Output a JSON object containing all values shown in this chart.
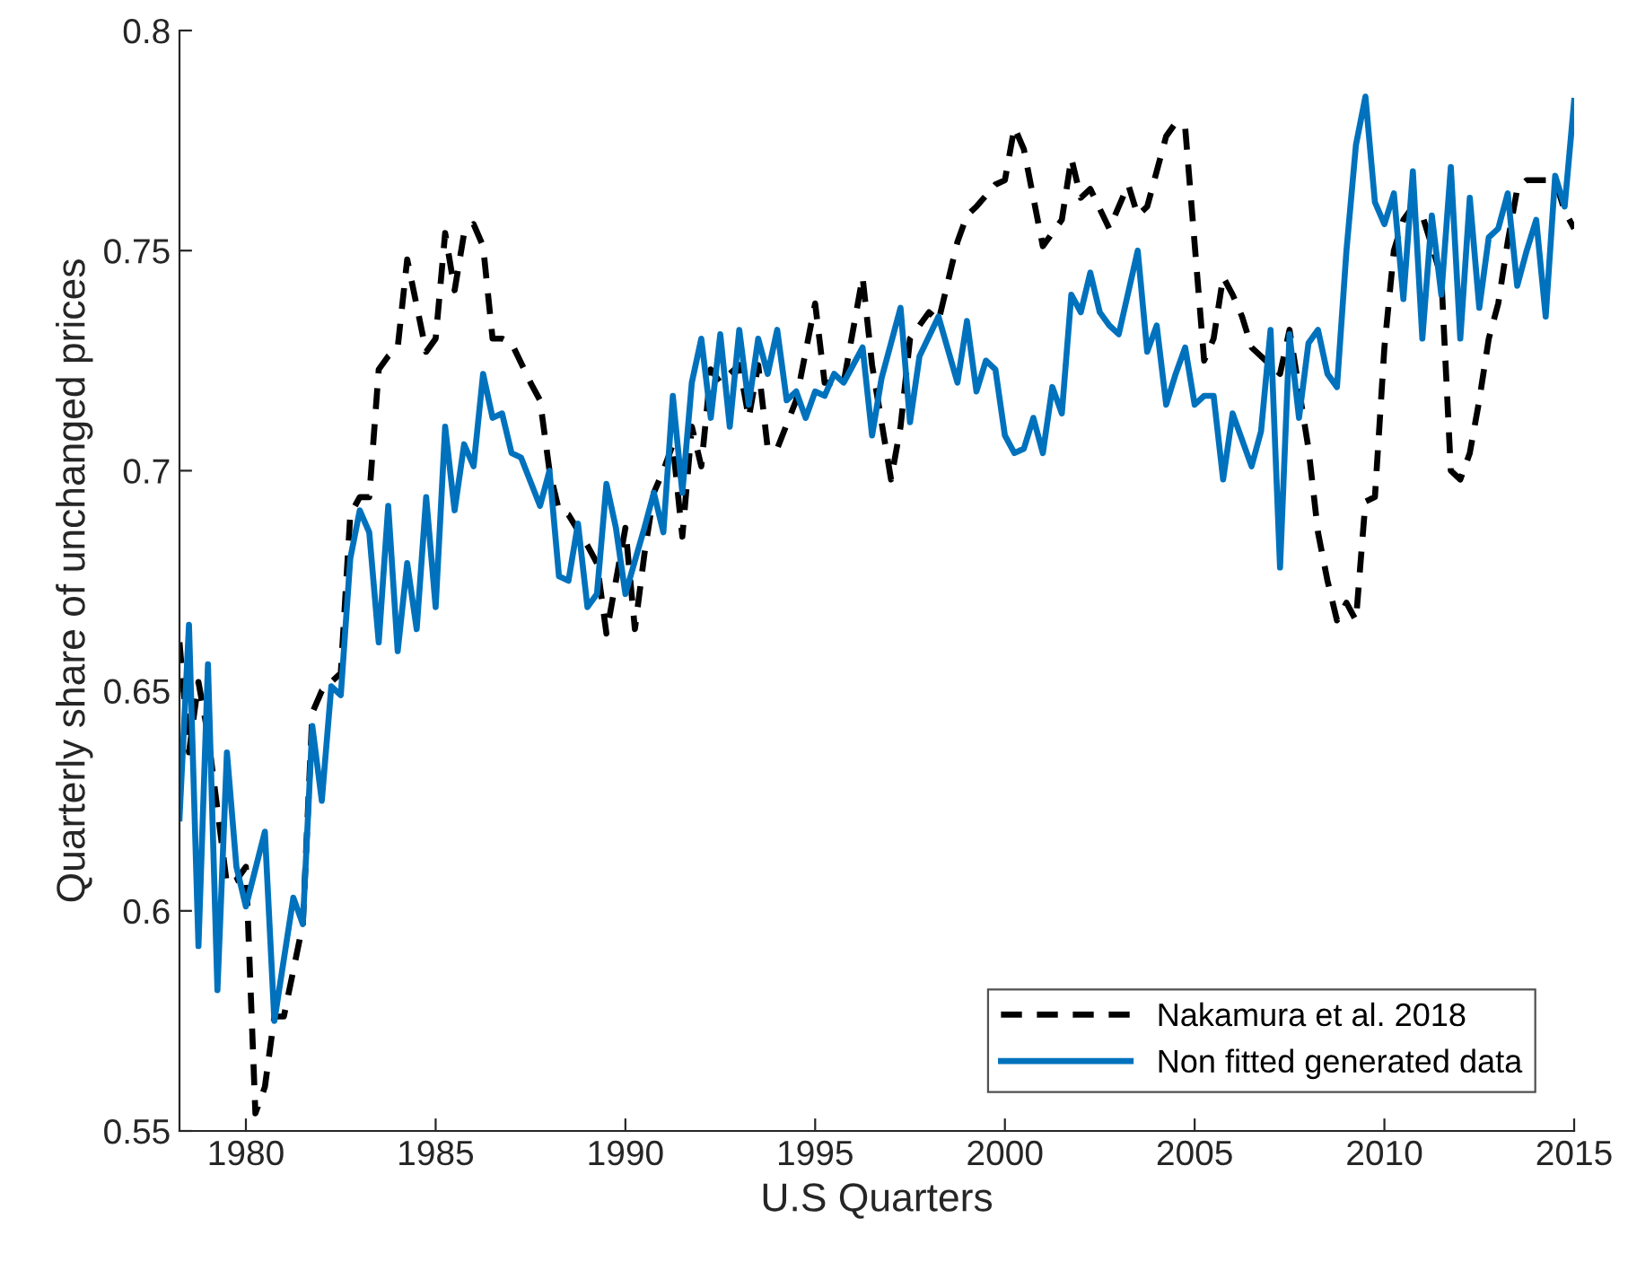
{
  "chart_data": {
    "type": "line",
    "xlabel": "U.S Quarters",
    "ylabel": "Quarterly share of unchanged prices",
    "xlim": [
      1978.25,
      2015
    ],
    "xticks": [
      1980,
      1985,
      1990,
      1995,
      2000,
      2005,
      2010,
      2015
    ],
    "ylim": [
      0.55,
      0.8
    ],
    "yticks": [
      0.55,
      0.6,
      0.65,
      0.7,
      0.75,
      0.8
    ],
    "grid": false,
    "legend": "bottom right",
    "series": [
      {
        "name": "Nakamura et al. 2018",
        "color": "#000000",
        "line_style": "dashed",
        "x": [
          1978.25,
          1978.5,
          1978.75,
          1979,
          1979.5,
          1979.75,
          1980,
          1980.25,
          1980.5,
          1980.75,
          1981,
          1981.5,
          1981.75,
          1982,
          1982.5,
          1982.75,
          1983,
          1983.25,
          1983.5,
          1983.75,
          1984,
          1984.25,
          1984.75,
          1985,
          1985.25,
          1985.5,
          1985.75,
          1986,
          1986.25,
          1986.5,
          1986.75,
          1987,
          1987.5,
          1987.75,
          1988,
          1988.25,
          1988.5,
          1989,
          1989.25,
          1989.5,
          1990,
          1990.25,
          1990.5,
          1990.75,
          1991,
          1991.25,
          1991.5,
          1991.75,
          1992,
          1992.25,
          1992.5,
          1993,
          1993.25,
          1993.5,
          1993.75,
          1994,
          1994.5,
          1995,
          1995.25,
          1995.75,
          1996.25,
          1996.5,
          1997,
          1997.25,
          1997.5,
          1998,
          1998.25,
          1998.75,
          1999,
          1999.25,
          1999.75,
          2000,
          2000.25,
          2000.5,
          2001,
          2001.5,
          2001.75,
          2002,
          2002.25,
          2002.75,
          2003.25,
          2003.5,
          2003.75,
          2004.25,
          2004.5,
          2004.75,
          2005.25,
          2005.5,
          2005.75,
          2006,
          2006.25,
          2006.5,
          2007,
          2007.25,
          2007.5,
          2008,
          2008.25,
          2008.5,
          2008.75,
          2009,
          2009.25,
          2009.5,
          2009.75,
          2010,
          2010.25,
          2010.5,
          2010.75,
          2011,
          2011.5,
          2011.75,
          2012,
          2012.25,
          2012.5,
          2012.75,
          2013,
          2013.25,
          2013.5,
          2013.75,
          2014,
          2014.5,
          2014.75,
          2015
        ],
        "values": [
          0.661,
          0.636,
          0.652,
          0.64,
          0.606,
          0.607,
          0.61,
          0.554,
          0.56,
          0.576,
          0.576,
          0.597,
          0.645,
          0.65,
          0.654,
          0.69,
          0.694,
          0.694,
          0.723,
          0.726,
          0.728,
          0.748,
          0.727,
          0.73,
          0.754,
          0.741,
          0.754,
          0.756,
          0.751,
          0.73,
          0.73,
          0.729,
          0.72,
          0.716,
          0.7,
          0.691,
          0.69,
          0.683,
          0.679,
          0.663,
          0.687,
          0.664,
          0.681,
          0.695,
          0.7,
          0.706,
          0.685,
          0.71,
          0.701,
          0.723,
          0.72,
          0.724,
          0.712,
          0.724,
          0.705,
          0.705,
          0.716,
          0.738,
          0.72,
          0.72,
          0.744,
          0.724,
          0.698,
          0.71,
          0.73,
          0.736,
          0.734,
          0.752,
          0.758,
          0.76,
          0.765,
          0.766,
          0.778,
          0.773,
          0.751,
          0.757,
          0.771,
          0.762,
          0.764,
          0.755,
          0.765,
          0.758,
          0.76,
          0.776,
          0.779,
          0.778,
          0.725,
          0.73,
          0.744,
          0.74,
          0.735,
          0.728,
          0.724,
          0.722,
          0.732,
          0.705,
          0.686,
          0.675,
          0.666,
          0.67,
          0.666,
          0.693,
          0.694,
          0.728,
          0.75,
          0.757,
          0.76,
          0.758,
          0.744,
          0.7,
          0.698,
          0.704,
          0.716,
          0.73,
          0.738,
          0.752,
          0.764,
          0.766,
          0.766,
          0.766,
          0.759,
          0.755
        ]
      },
      {
        "name": "Non fitted generated data",
        "color": "#0072bd",
        "line_style": "solid",
        "x": [
          1978.25,
          1978.5,
          1978.75,
          1979,
          1979.25,
          1979.5,
          1979.75,
          1980,
          1980.5,
          1980.75,
          1981.25,
          1981.5,
          1981.75,
          1982,
          1982.25,
          1982.5,
          1982.75,
          1983,
          1983.25,
          1983.5,
          1983.75,
          1984,
          1984.25,
          1984.5,
          1984.75,
          1985,
          1985.25,
          1985.5,
          1985.75,
          1986,
          1986.25,
          1986.5,
          1986.75,
          1987,
          1987.25,
          1987.75,
          1988,
          1988.25,
          1988.5,
          1988.75,
          1989,
          1989.25,
          1989.5,
          1989.75,
          1990,
          1990.5,
          1990.75,
          1991,
          1991.25,
          1991.5,
          1991.75,
          1992,
          1992.25,
          1992.5,
          1992.75,
          1993,
          1993.25,
          1993.5,
          1993.75,
          1994,
          1994.25,
          1994.5,
          1994.75,
          1995,
          1995.25,
          1995.5,
          1995.75,
          1996.25,
          1996.5,
          1996.75,
          1997.25,
          1997.5,
          1997.75,
          1998.25,
          1998.75,
          1999,
          1999.25,
          1999.5,
          1999.75,
          2000,
          2000.25,
          2000.5,
          2000.75,
          2001,
          2001.25,
          2001.5,
          2001.75,
          2002,
          2002.25,
          2002.5,
          2002.75,
          2003,
          2003.5,
          2003.75,
          2004,
          2004.25,
          2004.5,
          2004.75,
          2005,
          2005.25,
          2005.5,
          2005.75,
          2006,
          2006.5,
          2006.75,
          2007,
          2007.25,
          2007.5,
          2007.75,
          2008,
          2008.25,
          2008.5,
          2008.75,
          2009,
          2009.25,
          2009.5,
          2009.75,
          2010,
          2010.25,
          2010.5,
          2010.75,
          2011,
          2011.25,
          2011.5,
          2011.75,
          2012,
          2012.25,
          2012.5,
          2012.75,
          2013,
          2013.25,
          2013.5,
          2013.75,
          2014,
          2014.25,
          2014.5,
          2014.75,
          2015
        ],
        "values": [
          0.621,
          0.665,
          0.592,
          0.656,
          0.582,
          0.636,
          0.61,
          0.601,
          0.618,
          0.575,
          0.603,
          0.597,
          0.642,
          0.625,
          0.651,
          0.649,
          0.68,
          0.691,
          0.686,
          0.661,
          0.692,
          0.659,
          0.679,
          0.664,
          0.694,
          0.669,
          0.71,
          0.691,
          0.706,
          0.701,
          0.722,
          0.712,
          0.713,
          0.704,
          0.703,
          0.692,
          0.7,
          0.676,
          0.675,
          0.688,
          0.669,
          0.672,
          0.697,
          0.687,
          0.672,
          0.687,
          0.695,
          0.686,
          0.717,
          0.695,
          0.72,
          0.73,
          0.712,
          0.731,
          0.71,
          0.732,
          0.715,
          0.73,
          0.722,
          0.732,
          0.716,
          0.718,
          0.712,
          0.718,
          0.717,
          0.722,
          0.72,
          0.728,
          0.708,
          0.721,
          0.737,
          0.711,
          0.726,
          0.735,
          0.72,
          0.734,
          0.718,
          0.725,
          0.723,
          0.708,
          0.704,
          0.705,
          0.712,
          0.704,
          0.719,
          0.713,
          0.74,
          0.736,
          0.745,
          0.736,
          0.733,
          0.731,
          0.75,
          0.727,
          0.733,
          0.715,
          0.722,
          0.728,
          0.715,
          0.717,
          0.717,
          0.698,
          0.713,
          0.701,
          0.709,
          0.732,
          0.678,
          0.731,
          0.712,
          0.729,
          0.732,
          0.722,
          0.719,
          0.75,
          0.774,
          0.785,
          0.761,
          0.756,
          0.763,
          0.739,
          0.768,
          0.73,
          0.758,
          0.74,
          0.769,
          0.73,
          0.762,
          0.737,
          0.753,
          0.755,
          0.763,
          0.742,
          0.75,
          0.757,
          0.735,
          0.767,
          0.76,
          0.784
        ]
      }
    ]
  }
}
